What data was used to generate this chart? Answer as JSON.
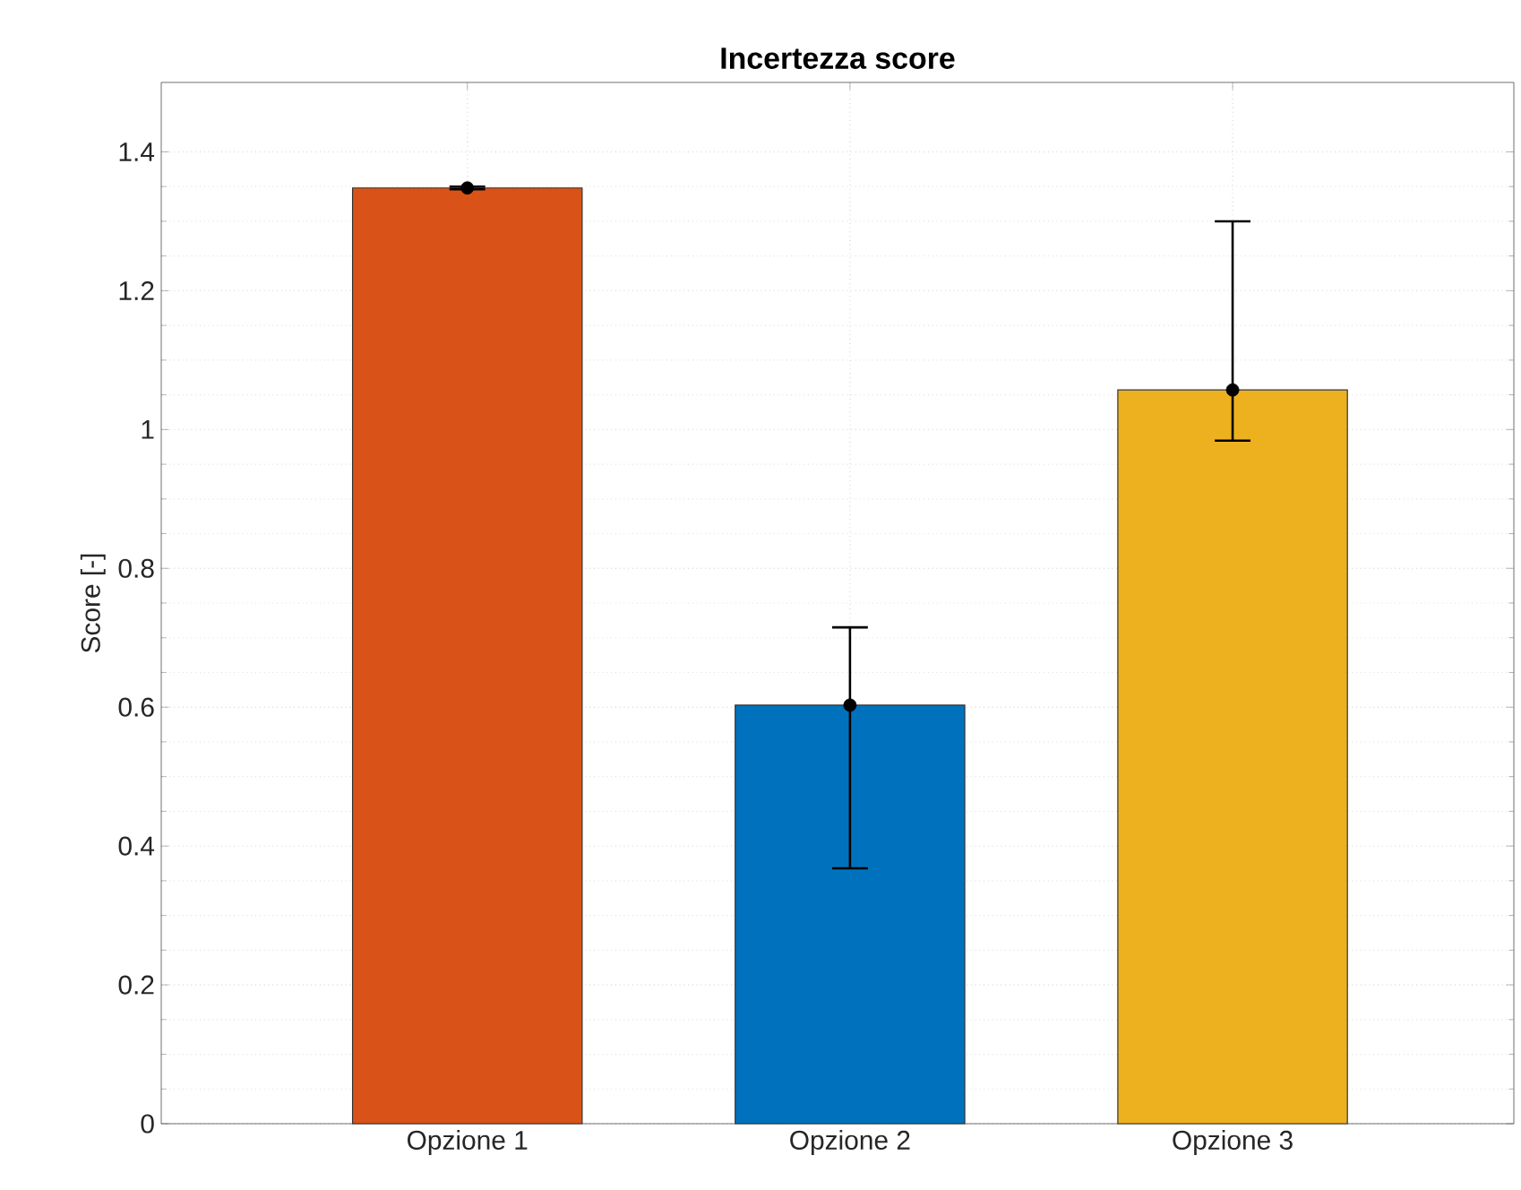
{
  "chart_data": {
    "type": "bar",
    "title": "Incertezza score",
    "ylabel": "Score [-]",
    "categories": [
      "Opzione 1",
      "Opzione 2",
      "Opzione 3"
    ],
    "series": [
      {
        "type": "bar",
        "values": [
          1.348,
          0.603,
          1.057
        ],
        "colors": [
          "#d95319",
          "#0072bd",
          "#edb120"
        ]
      },
      {
        "type": "scatter",
        "color": "#000000",
        "x": [
          "Opzione 1",
          "Opzione 2",
          "Opzione 3"
        ],
        "values": [
          1.348,
          0.603,
          1.057
        ],
        "errors": [
          [
            1.346,
            1.35
          ],
          [
            0.368,
            0.715
          ],
          [
            0.984,
            1.3
          ]
        ]
      }
    ],
    "ylim": [
      0,
      1.5
    ],
    "yticks": [
      0,
      0.2,
      0.4,
      0.6,
      0.8,
      1,
      1.2,
      1.4
    ],
    "grid": true,
    "marker": "circle"
  }
}
